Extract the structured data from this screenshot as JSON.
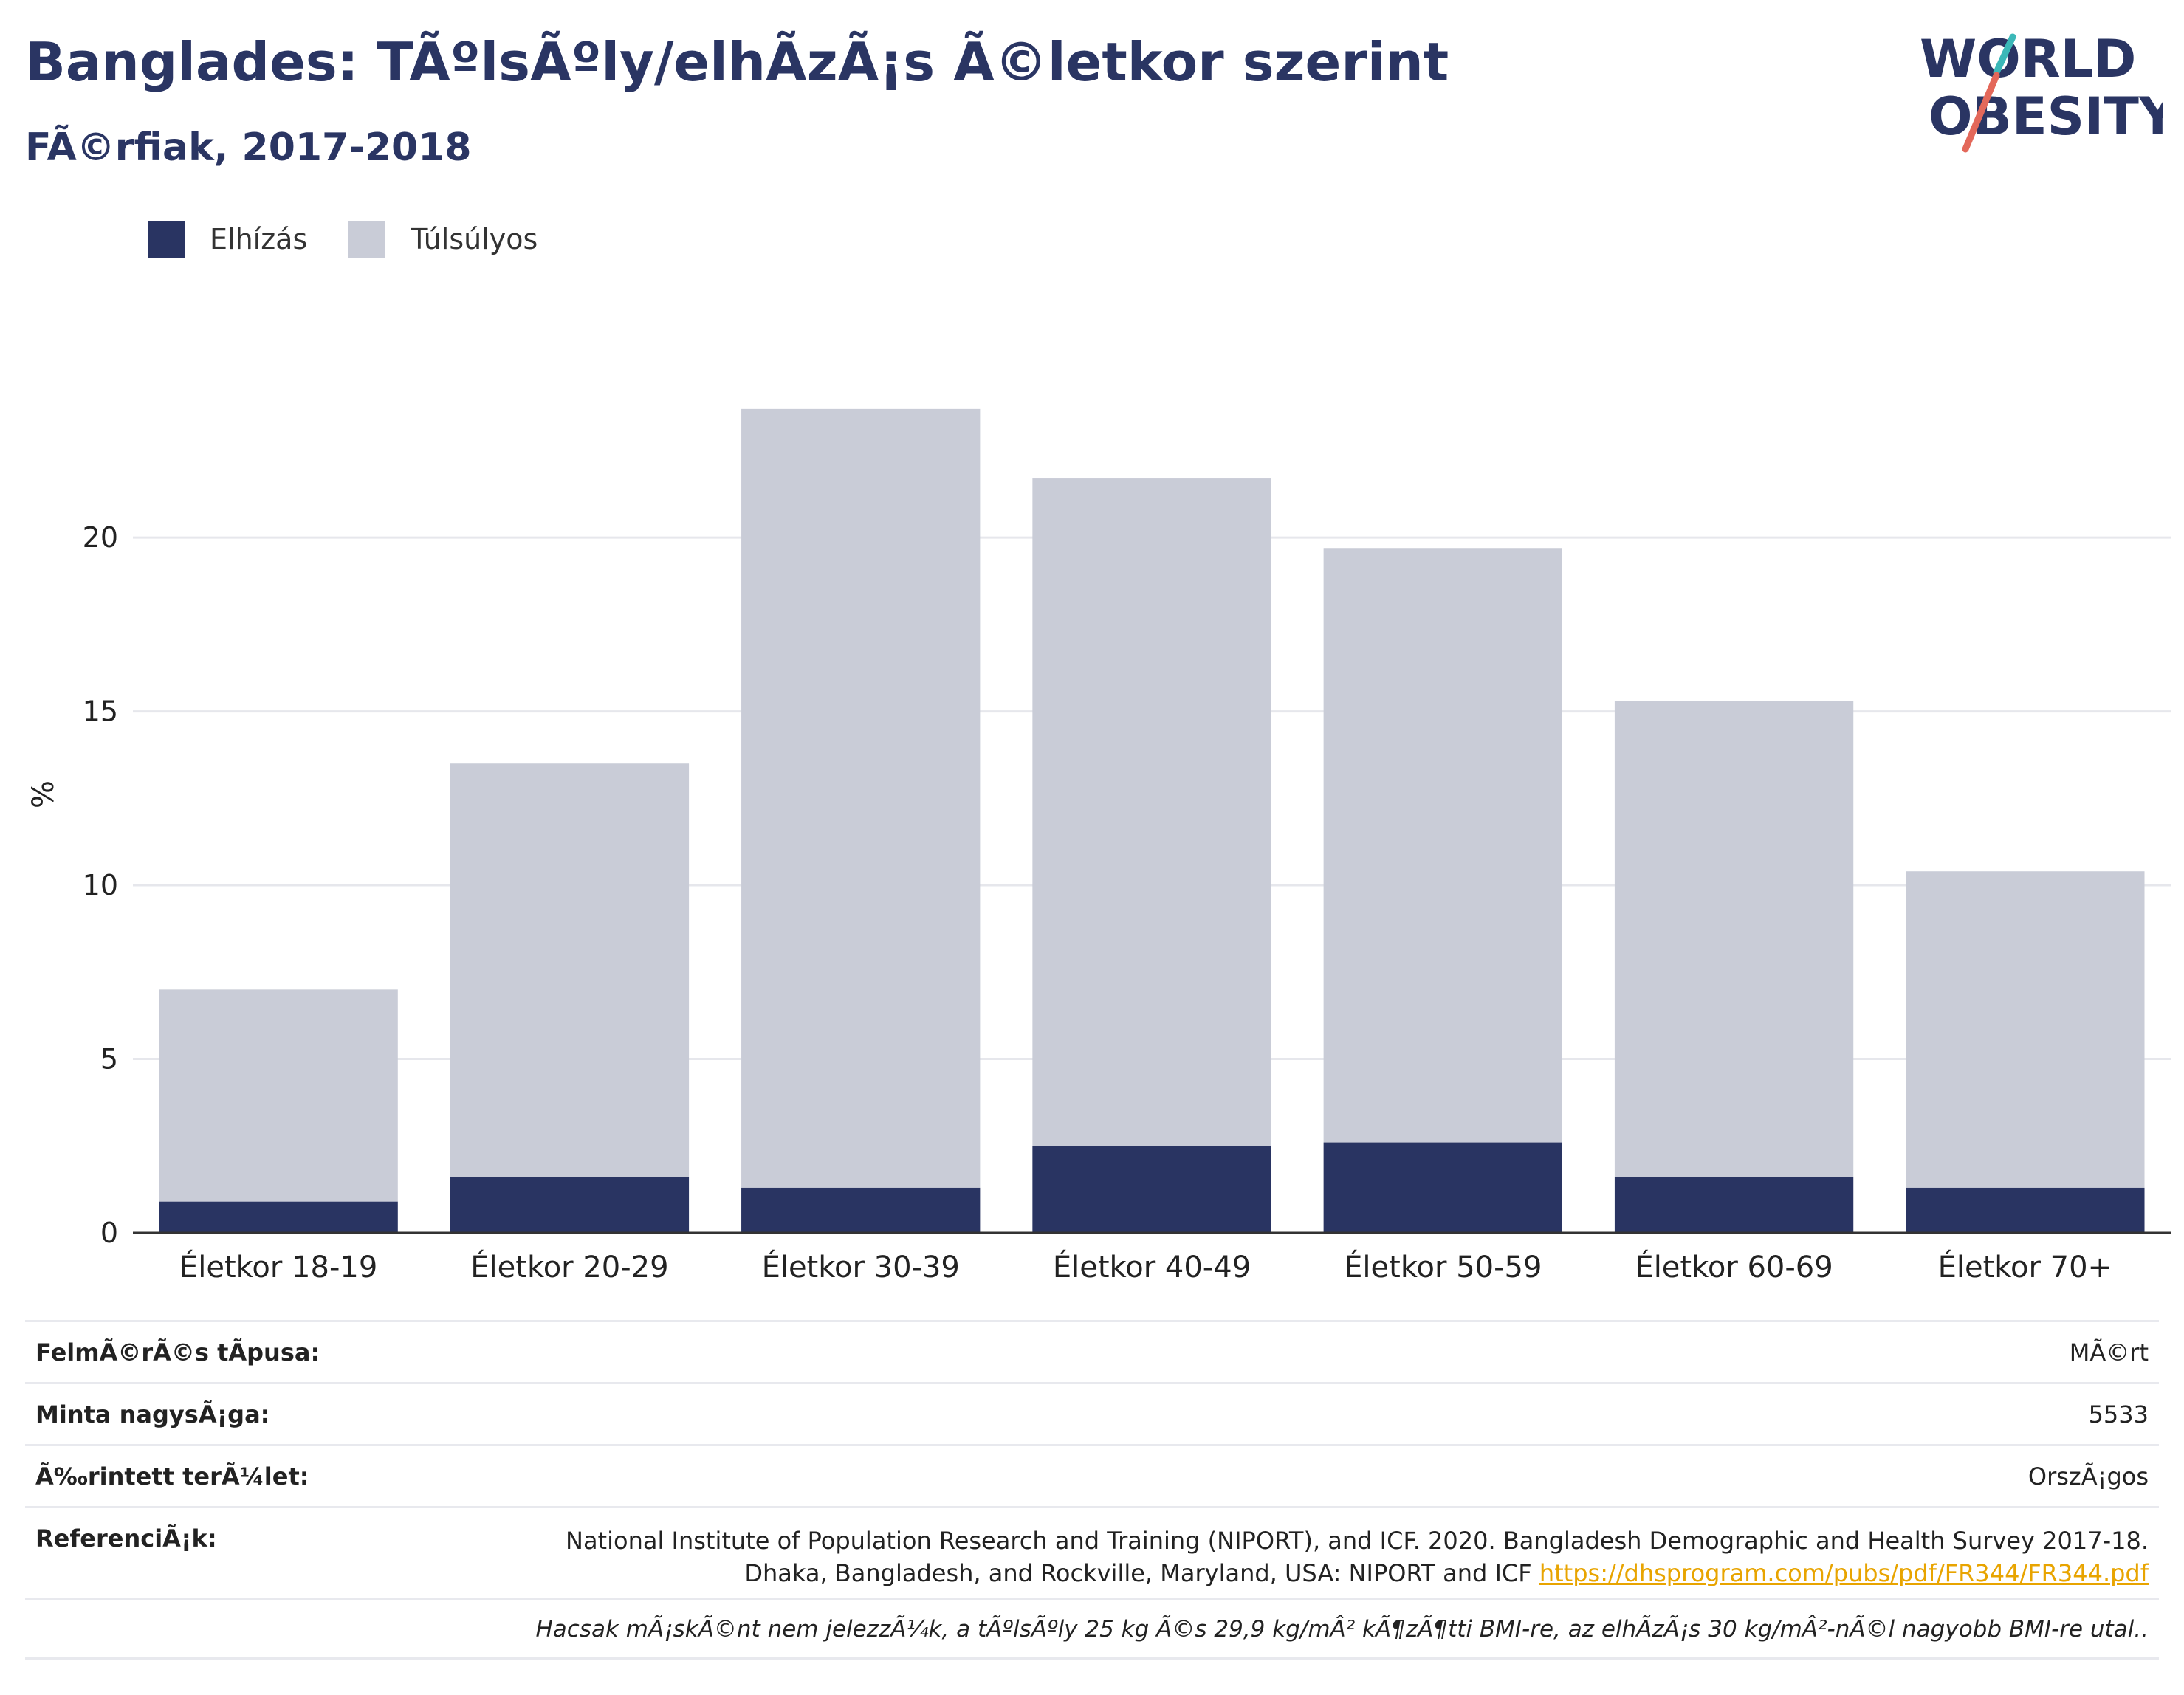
{
  "header": {
    "title": "Banglades: TÃºlsÃºly/elhÃ­zÃ¡s Ã©letkor szerint",
    "subtitle": "FÃ©rfiak, 2017-2018"
  },
  "logo": {
    "line1": "WORLD",
    "line2": "OBESITY"
  },
  "legend": [
    {
      "label": "Elhízás",
      "color": "#293462"
    },
    {
      "label": "Túlsúlyos",
      "color": "#c9ccd7"
    }
  ],
  "chart_data": {
    "type": "bar",
    "stacked": true,
    "categories": [
      "Életkor 18-19",
      "Életkor 20-29",
      "Életkor 30-39",
      "Életkor 40-49",
      "Életkor 50-59",
      "Életkor 60-69",
      "Életkor 70+"
    ],
    "series": [
      {
        "name": "Elhízás",
        "color": "#293462",
        "values": [
          0.9,
          1.6,
          1.3,
          2.5,
          2.6,
          1.6,
          1.3
        ]
      },
      {
        "name": "Túlsúlyos",
        "color": "#c9ccd7",
        "values": [
          6.1,
          11.9,
          22.4,
          19.2,
          17.1,
          13.7,
          9.1
        ]
      }
    ],
    "ylabel": "%",
    "xlabel": "",
    "ylim": [
      0,
      26.5
    ],
    "yticks": [
      0,
      5,
      10,
      15,
      20
    ],
    "grid": true
  },
  "info": {
    "survey_type_label": "FelmÃ©rÃ©s tÃpusa:",
    "survey_type_value": "MÃ©rt",
    "sample_size_label": "Minta nagysÃ¡ga:",
    "sample_size_value": "5533",
    "area_label": "Ã‰rintett terÃ¼let:",
    "area_value": "OrszÃ¡gos",
    "references_label": "ReferenciÃ¡k:",
    "reference_line1": "National Institute of Population Research and Training (NIPORT), and ICF. 2020. Bangladesh Demographic and Health Survey 2017-18.",
    "reference_line2": "Dhaka, Bangladesh, and Rockville, Maryland, USA: NIPORT and ICF",
    "reference_link": "https://dhsprogram.com/pubs/pdf/FR344/FR344.pdf",
    "note": "Hacsak mÃ¡skÃ©nt nem jelezzÃ¼k, a tÃºlsÃºly 25 kg Ã©s 29,9 kg/mÂ² kÃ¶zÃ¶tti BMI-re, az elhÃ­zÃ¡s 30 kg/mÂ²-nÃ©l nagyobb BMI-re utal.."
  }
}
